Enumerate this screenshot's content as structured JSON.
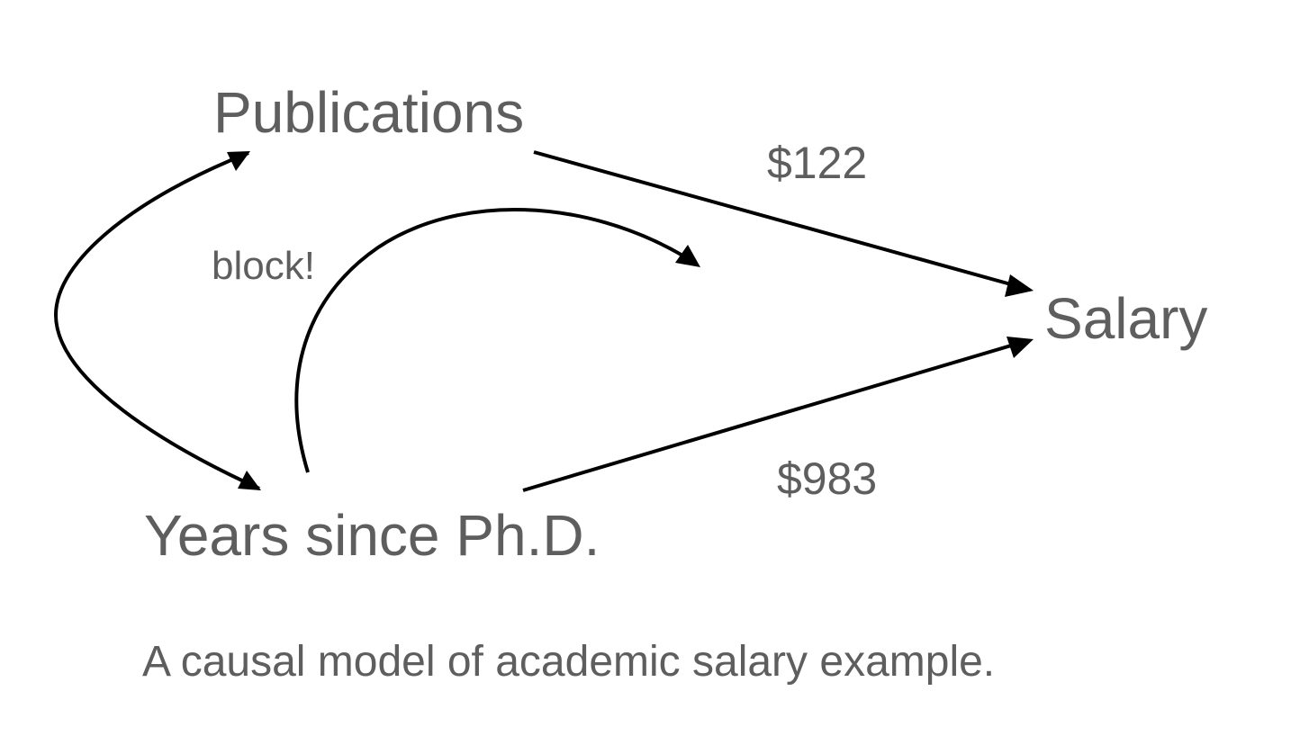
{
  "nodes": {
    "publications": "Publications",
    "years": "Years since Ph.D.",
    "salary": "Salary"
  },
  "edges": {
    "publications_to_salary": "$122",
    "years_to_salary": "$983"
  },
  "annotation": "block!",
  "caption": "A causal model of academic salary example.",
  "colors": {
    "text": "#5e5e5e",
    "arrow": "#000000",
    "background": "#ffffff"
  }
}
